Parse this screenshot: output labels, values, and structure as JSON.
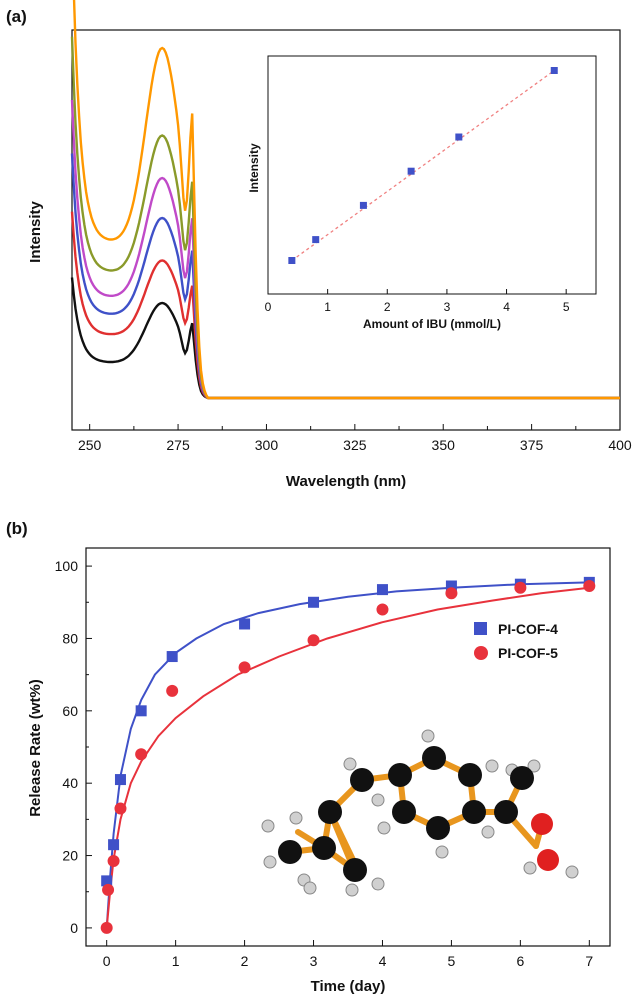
{
  "chart_data": [
    {
      "panel": "(a)",
      "type": "line",
      "xlabel": "Wavelength (nm)",
      "ylabel": "Intensity",
      "xlim": [
        245,
        400
      ],
      "xticks": [
        "250",
        "275",
        "300",
        "325",
        "350",
        "375",
        "400"
      ],
      "yticks_shown": false,
      "series": [
        {
          "color": "#111111",
          "peak": 0.38,
          "baseline": 0.14
        },
        {
          "color": "#e03030",
          "peak": 0.55,
          "baseline": 0.25
        },
        {
          "color": "#3f51c8",
          "peak": 0.72,
          "baseline": 0.33
        },
        {
          "color": "#c04ac8",
          "peak": 0.88,
          "baseline": 0.4
        },
        {
          "color": "#8a9a2a",
          "peak": 1.05,
          "baseline": 0.5
        },
        {
          "color": "#ff9800",
          "peak": 1.4,
          "baseline": 0.62
        }
      ],
      "inset": {
        "type": "scatter",
        "xlabel": "Amount of IBU (mmol/L)",
        "ylabel": "Intensity",
        "xlim": [
          0,
          5.5
        ],
        "xticks": [
          "0",
          "1",
          "2",
          "3",
          "4",
          "5"
        ],
        "points": [
          {
            "x": 0.4,
            "y": 0.05
          },
          {
            "x": 0.8,
            "y": 0.16
          },
          {
            "x": 1.6,
            "y": 0.34
          },
          {
            "x": 2.4,
            "y": 0.52
          },
          {
            "x": 3.2,
            "y": 0.7
          },
          {
            "x": 4.8,
            "y": 1.05
          }
        ],
        "point_color": "#3f51c8",
        "fit_color": "#f08080"
      }
    },
    {
      "panel": "(b)",
      "type": "scatter",
      "xlabel": "Time (day)",
      "ylabel": "Release Rate (wt%)",
      "xlim": [
        -0.3,
        7.3
      ],
      "ylim": [
        -5,
        105
      ],
      "xticks": [
        "0",
        "1",
        "2",
        "3",
        "4",
        "5",
        "6",
        "7"
      ],
      "yticks": [
        "0",
        "20",
        "40",
        "60",
        "80",
        "100"
      ],
      "legend_position": "right",
      "series": [
        {
          "name": "PI-COF-4",
          "color": "#3f51c8",
          "marker": "square",
          "x": [
            0,
            0.1,
            0.2,
            0.5,
            0.95,
            2,
            3,
            4,
            5,
            6,
            7
          ],
          "y": [
            13,
            23,
            41,
            60,
            75,
            84,
            90,
            93.5,
            94.5,
            95,
            95.5
          ],
          "fit_x": [
            0,
            0.05,
            0.1,
            0.2,
            0.35,
            0.5,
            0.7,
            1,
            1.3,
            1.7,
            2.2,
            2.8,
            3.5,
            4.2,
            5,
            6,
            7
          ],
          "fit_y": [
            0,
            14,
            26,
            42,
            55,
            63,
            70,
            76,
            80,
            84,
            87,
            89.5,
            91.5,
            93,
            94,
            95,
            95.5
          ]
        },
        {
          "name": "PI-COF-5",
          "color": "#e8323c",
          "marker": "circle",
          "x": [
            0,
            0.02,
            0.1,
            0.2,
            0.5,
            0.95,
            2,
            3,
            4,
            5,
            6,
            7
          ],
          "y": [
            0,
            10.5,
            18.5,
            33,
            48,
            65.5,
            72,
            79.5,
            88,
            92.5,
            94,
            94.5
          ],
          "fit_x": [
            0,
            0.05,
            0.1,
            0.2,
            0.35,
            0.5,
            0.75,
            1,
            1.4,
            1.9,
            2.5,
            3.2,
            4,
            4.8,
            5.6,
            6.3,
            7
          ],
          "fit_y": [
            0,
            10,
            19,
            30,
            40,
            46,
            53,
            58,
            64,
            70,
            75,
            80,
            84.5,
            88,
            90.5,
            92.5,
            94
          ]
        }
      ]
    }
  ]
}
